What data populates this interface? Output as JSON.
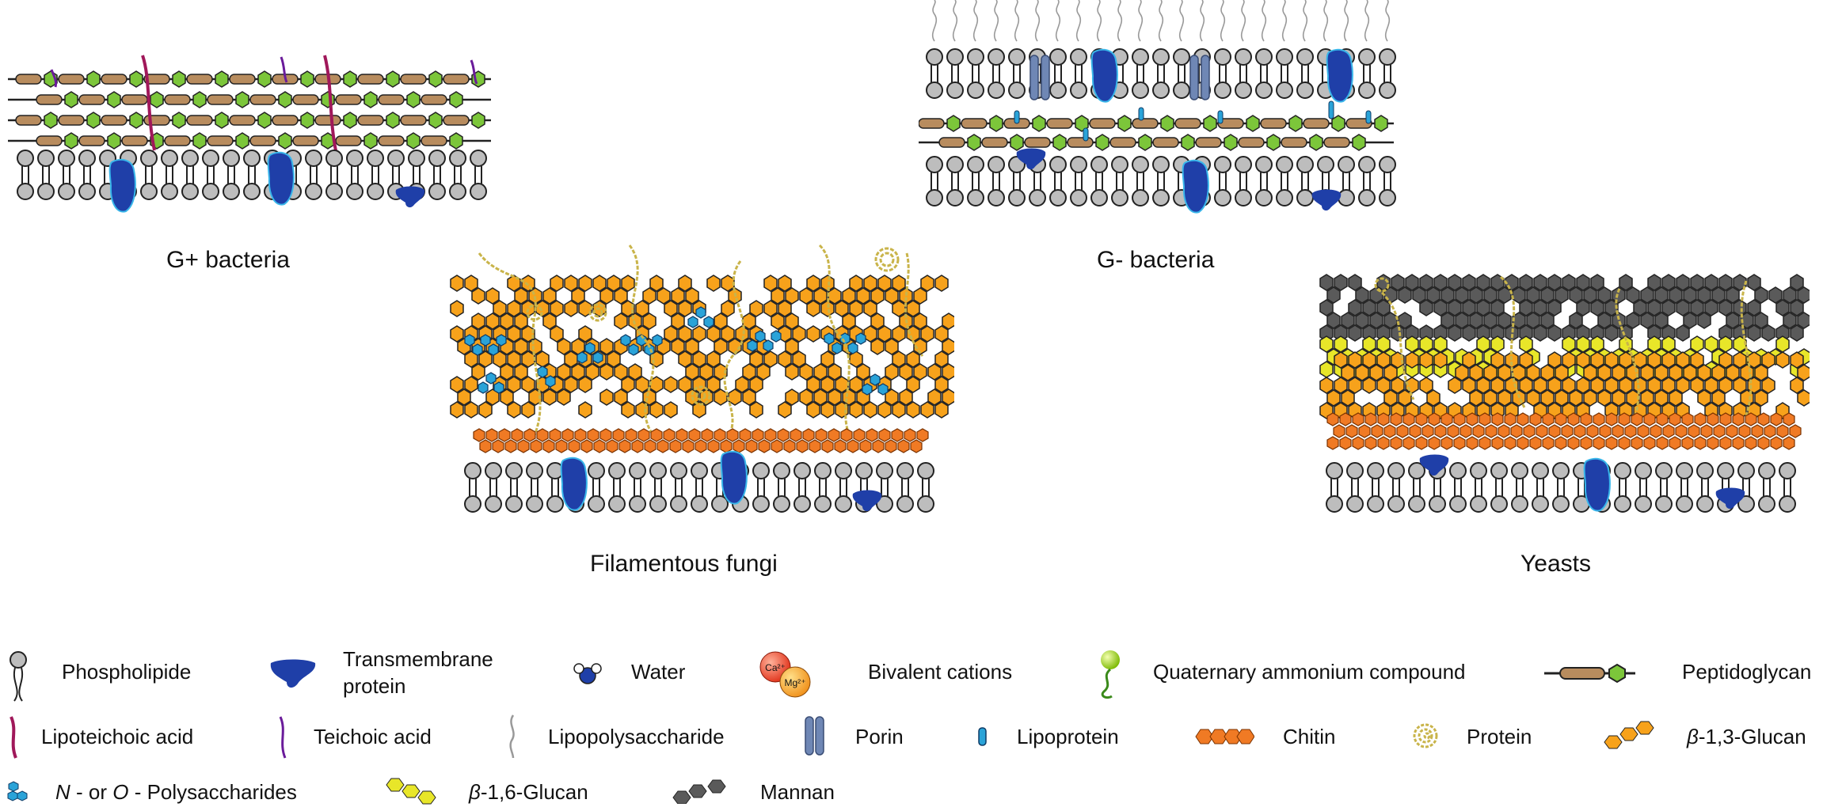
{
  "captions": {
    "gram_positive": "G+ bacteria",
    "gram_negative": "G- bacteria",
    "filamentous_fungi": "Filamentous fungi",
    "yeasts": "Yeasts"
  },
  "legend": {
    "phospholipide": "Phospholipide",
    "transmembrane_line1": "Transmembrane",
    "transmembrane_line2": "protein",
    "water": "Water",
    "bivalent_cations": "Bivalent cations",
    "ca_label": "Ca²⁺",
    "mg_label": "Mg²⁺",
    "quaternary_ammonium": "Quaternary ammonium compound",
    "peptidoglycan": "Peptidoglycan",
    "lipoteichoic_acid": "Lipoteichoic acid",
    "teichoic_acid": "Teichoic acid",
    "lipopolysaccharide": "Lipopolysaccharide",
    "porin": "Porin",
    "lipoprotein": "Lipoprotein",
    "chitin": "Chitin",
    "protein": "Protein",
    "beta13_prefix": "β",
    "beta13_suffix": "-1,3-Glucan",
    "n_or_o_1": "N",
    "n_or_o_2": " - or ",
    "n_or_o_3": "O",
    "n_or_o_4": " - Polysaccharides",
    "beta16_prefix": "β",
    "beta16_suffix": "-1,6-Glucan",
    "mannan": "Mannan"
  },
  "colors": {
    "phospholipid_head": "#bdbdbd",
    "transmembrane_protein": "#1f3fa8",
    "peptidoglycan_bar": "#b88c5e",
    "peptidoglycan_hex": "#7cc63a",
    "lipoteichoic": "#a0185a",
    "teichoic": "#6a1b9a",
    "porin": "#6f87b5",
    "lipoprotein": "#2aa3d8",
    "chitin": "#f07a24",
    "beta13_glucan": "#f7a21b",
    "beta16_glucan": "#e8e629",
    "mannan": "#5a5a5a",
    "polysaccharide": "#2aa3d8",
    "protein_fiber": "#e0cf6a"
  },
  "icons": [
    "phospholipid-icon",
    "transmembrane-protein-icon",
    "water-icon",
    "cation-icon",
    "quaternary-ammonium-icon",
    "peptidoglycan-icon",
    "lipoteichoic-acid-icon",
    "teichoic-acid-icon",
    "lipopolysaccharide-icon",
    "porin-icon",
    "lipoprotein-icon",
    "chitin-icon",
    "protein-icon",
    "beta13-glucan-icon",
    "polysaccharide-icon",
    "beta16-glucan-icon",
    "mannan-icon"
  ]
}
